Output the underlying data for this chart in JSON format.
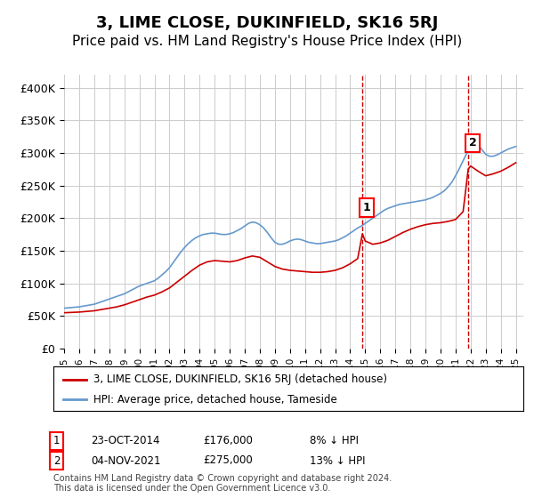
{
  "title": "3, LIME CLOSE, DUKINFIELD, SK16 5RJ",
  "subtitle": "Price paid vs. HM Land Registry's House Price Index (HPI)",
  "title_fontsize": 13,
  "subtitle_fontsize": 11,
  "ylabel": "",
  "ylim": [
    0,
    420000
  ],
  "yticks": [
    0,
    50000,
    100000,
    150000,
    200000,
    250000,
    300000,
    350000,
    400000
  ],
  "ytick_labels": [
    "£0",
    "£50K",
    "£100K",
    "£150K",
    "£200K",
    "£250K",
    "£300K",
    "£350K",
    "£400K"
  ],
  "xlim_start": 1995.0,
  "xlim_end": 2025.5,
  "line_red_color": "#cc0000",
  "line_blue_color": "#6699cc",
  "grid_color": "#cccccc",
  "bg_color": "#ffffff",
  "point1_x": 2014.81,
  "point1_y": 176000,
  "point1_label": "1",
  "point1_date": "23-OCT-2014",
  "point1_price": "£176,000",
  "point1_hpi": "8% ↓ HPI",
  "point2_x": 2021.84,
  "point2_y": 275000,
  "point2_label": "2",
  "point2_date": "04-NOV-2021",
  "point2_price": "£275,000",
  "point2_hpi": "13% ↓ HPI",
  "legend_line1": "3, LIME CLOSE, DUKINFIELD, SK16 5RJ (detached house)",
  "legend_line2": "HPI: Average price, detached house, Tameside",
  "footnote": "Contains HM Land Registry data © Crown copyright and database right 2024.\nThis data is licensed under the Open Government Licence v3.0.",
  "hpi_years": [
    1995.0,
    1995.25,
    1995.5,
    1995.75,
    1996.0,
    1996.25,
    1996.5,
    1996.75,
    1997.0,
    1997.25,
    1997.5,
    1997.75,
    1998.0,
    1998.25,
    1998.5,
    1998.75,
    1999.0,
    1999.25,
    1999.5,
    1999.75,
    2000.0,
    2000.25,
    2000.5,
    2000.75,
    2001.0,
    2001.25,
    2001.5,
    2001.75,
    2002.0,
    2002.25,
    2002.5,
    2002.75,
    2003.0,
    2003.25,
    2003.5,
    2003.75,
    2004.0,
    2004.25,
    2004.5,
    2004.75,
    2005.0,
    2005.25,
    2005.5,
    2005.75,
    2006.0,
    2006.25,
    2006.5,
    2006.75,
    2007.0,
    2007.25,
    2007.5,
    2007.75,
    2008.0,
    2008.25,
    2008.5,
    2008.75,
    2009.0,
    2009.25,
    2009.5,
    2009.75,
    2010.0,
    2010.25,
    2010.5,
    2010.75,
    2011.0,
    2011.25,
    2011.5,
    2011.75,
    2012.0,
    2012.25,
    2012.5,
    2012.75,
    2013.0,
    2013.25,
    2013.5,
    2013.75,
    2014.0,
    2014.25,
    2014.5,
    2014.75,
    2015.0,
    2015.25,
    2015.5,
    2015.75,
    2016.0,
    2016.25,
    2016.5,
    2016.75,
    2017.0,
    2017.25,
    2017.5,
    2017.75,
    2018.0,
    2018.25,
    2018.5,
    2018.75,
    2019.0,
    2019.25,
    2019.5,
    2019.75,
    2020.0,
    2020.25,
    2020.5,
    2020.75,
    2021.0,
    2021.25,
    2021.5,
    2021.75,
    2022.0,
    2022.25,
    2022.5,
    2022.75,
    2023.0,
    2023.25,
    2023.5,
    2023.75,
    2024.0,
    2024.25,
    2024.5,
    2024.75,
    2025.0
  ],
  "hpi_values": [
    62000,
    62500,
    63000,
    63500,
    64000,
    65000,
    66000,
    67000,
    68000,
    70000,
    72000,
    74000,
    76000,
    78000,
    80000,
    82000,
    84000,
    87000,
    90000,
    93000,
    96000,
    98000,
    100000,
    102000,
    104000,
    108000,
    113000,
    118000,
    124000,
    132000,
    140000,
    148000,
    155000,
    161000,
    166000,
    170000,
    173000,
    175000,
    176000,
    177000,
    177000,
    176000,
    175000,
    175000,
    176000,
    178000,
    181000,
    184000,
    188000,
    192000,
    194000,
    193000,
    190000,
    185000,
    178000,
    170000,
    163000,
    160000,
    160000,
    162000,
    165000,
    167000,
    168000,
    167000,
    165000,
    163000,
    162000,
    161000,
    161000,
    162000,
    163000,
    164000,
    165000,
    167000,
    170000,
    173000,
    177000,
    181000,
    185000,
    188000,
    192000,
    196000,
    200000,
    204000,
    208000,
    212000,
    215000,
    217000,
    219000,
    221000,
    222000,
    223000,
    224000,
    225000,
    226000,
    227000,
    228000,
    230000,
    232000,
    235000,
    238000,
    242000,
    248000,
    255000,
    265000,
    276000,
    288000,
    300000,
    310000,
    315000,
    312000,
    305000,
    298000,
    295000,
    295000,
    297000,
    300000,
    303000,
    306000,
    308000,
    310000
  ],
  "red_years": [
    1995.0,
    1995.5,
    1996.0,
    1996.5,
    1997.0,
    1997.5,
    1998.0,
    1998.5,
    1999.0,
    1999.5,
    2000.0,
    2000.5,
    2001.0,
    2001.5,
    2002.0,
    2002.5,
    2003.0,
    2003.5,
    2004.0,
    2004.5,
    2005.0,
    2005.5,
    2006.0,
    2006.5,
    2007.0,
    2007.5,
    2008.0,
    2008.5,
    2009.0,
    2009.5,
    2010.0,
    2010.5,
    2011.0,
    2011.5,
    2012.0,
    2012.5,
    2013.0,
    2013.5,
    2014.0,
    2014.5,
    2014.81,
    2015.0,
    2015.5,
    2016.0,
    2016.5,
    2017.0,
    2017.5,
    2018.0,
    2018.5,
    2019.0,
    2019.5,
    2020.0,
    2020.5,
    2021.0,
    2021.5,
    2021.84,
    2022.0,
    2022.5,
    2023.0,
    2023.5,
    2024.0,
    2024.5,
    2025.0
  ],
  "red_values": [
    55000,
    55500,
    56000,
    57000,
    58000,
    60000,
    62000,
    64000,
    67000,
    71000,
    75000,
    79000,
    82000,
    87000,
    93000,
    102000,
    111000,
    120000,
    128000,
    133000,
    135000,
    134000,
    133000,
    135000,
    139000,
    142000,
    140000,
    133000,
    126000,
    122000,
    120000,
    119000,
    118000,
    117000,
    117000,
    118000,
    120000,
    124000,
    130000,
    138000,
    176000,
    165000,
    160000,
    162000,
    166000,
    172000,
    178000,
    183000,
    187000,
    190000,
    192000,
    193000,
    195000,
    198000,
    210000,
    275000,
    280000,
    272000,
    265000,
    268000,
    272000,
    278000,
    285000
  ]
}
